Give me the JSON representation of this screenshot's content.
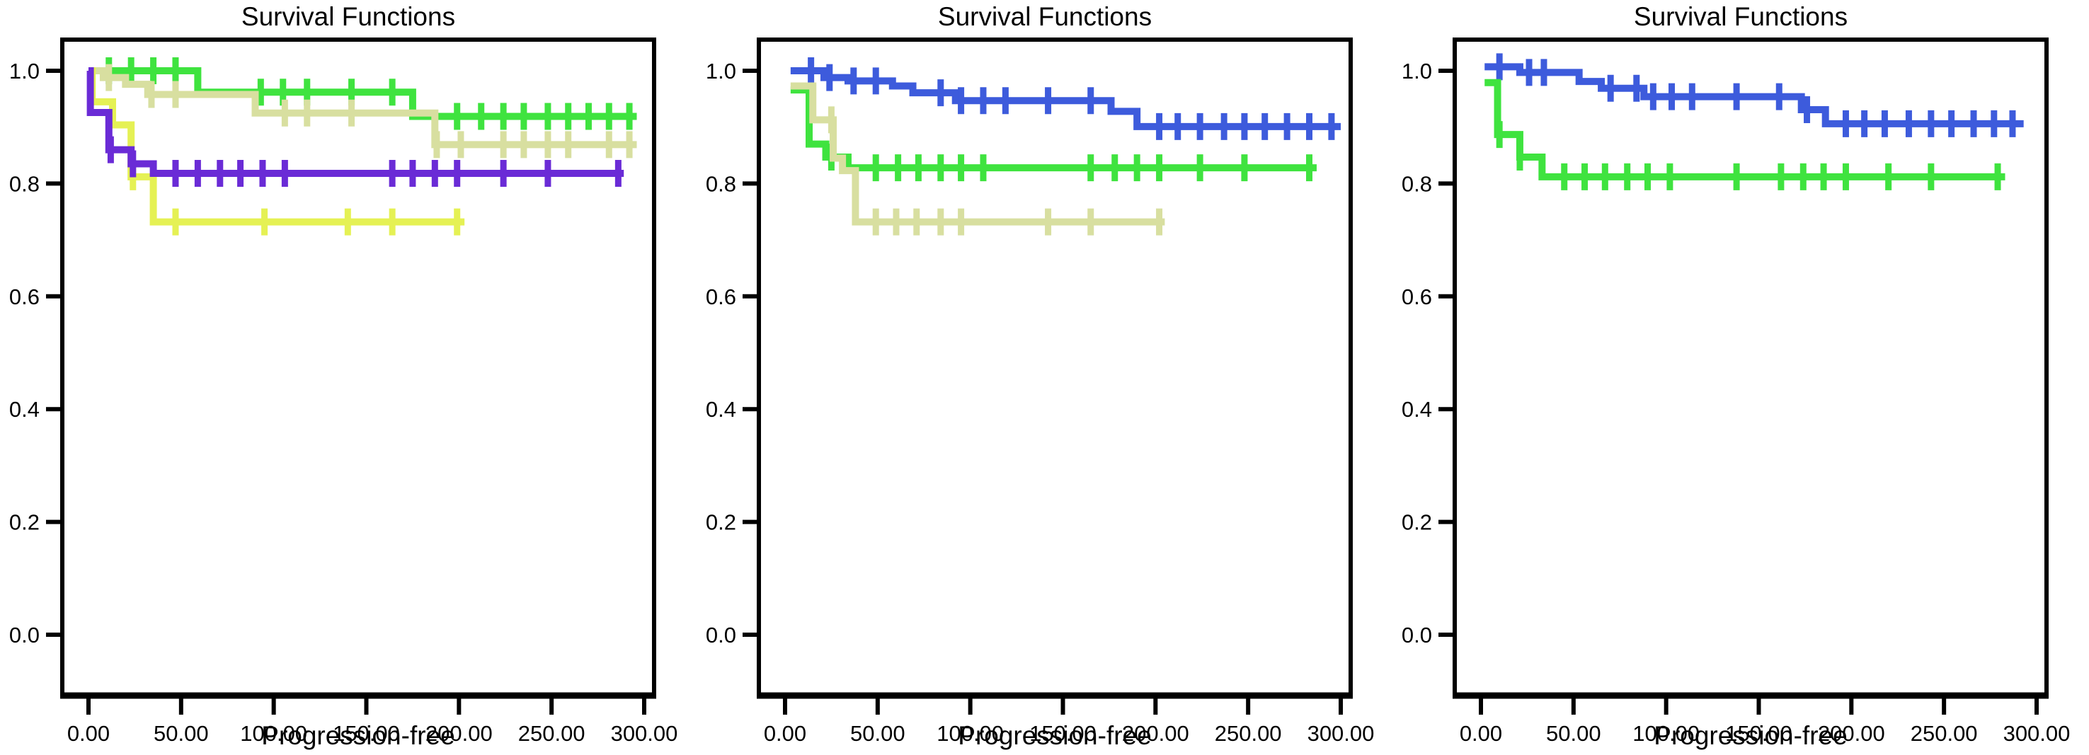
{
  "figure": {
    "background": "#ffffff",
    "panel_count": 3
  },
  "chart_data": [
    {
      "panel": "left",
      "type": "line",
      "subtype": "kaplan_meier_step",
      "title": "Survival Functions",
      "xlabel": "Progression-free",
      "xlim": [
        0,
        300
      ],
      "ylim": [
        0.0,
        1.05
      ],
      "grid": false,
      "legend": "none",
      "x_tick_values": [
        0,
        50,
        100,
        150,
        200,
        250,
        300
      ],
      "x_tick_labels": [
        "0.00",
        "50.00",
        "100.00",
        "150.00",
        "200.00",
        "250.00",
        "300.00"
      ],
      "y_tick_values": [
        1.0,
        0.8,
        0.6,
        0.4,
        0.2,
        0.0
      ],
      "y_tick_labels": [
        "1.0",
        "0.8",
        "0.6",
        "0.4",
        "0.2",
        "0.0"
      ],
      "series": [
        {
          "name": "green-curve",
          "color": "#3FE33F",
          "steps": [
            [
              0,
              1.0
            ],
            [
              59,
              0.962
            ],
            [
              175,
              0.919
            ]
          ],
          "end": 296,
          "censors": [
            11,
            23,
            35,
            47,
            93,
            105,
            118,
            142,
            164,
            199,
            212,
            224,
            235,
            248,
            259,
            270,
            281,
            292
          ]
        },
        {
          "name": "khaki-curve",
          "color": "#D8DFA0",
          "steps": [
            [
              0,
              1.0
            ],
            [
              8,
              0.988
            ],
            [
              20,
              0.976
            ],
            [
              32,
              0.958
            ],
            [
              90,
              0.925
            ],
            [
              187,
              0.869
            ]
          ],
          "end": 296,
          "censors": [
            11,
            34,
            47,
            106,
            118,
            142,
            188,
            201,
            224,
            235,
            248,
            259,
            281,
            292
          ]
        },
        {
          "name": "yellow-curve",
          "color": "#E5F154",
          "steps": [
            [
              0,
              1.0
            ],
            [
              2,
              0.945
            ],
            [
              13,
              0.904
            ],
            [
              23,
              0.812
            ],
            [
              35,
              0.732
            ]
          ],
          "end": 203,
          "censors": [
            24,
            47,
            95,
            140,
            164,
            199
          ]
        },
        {
          "name": "purple-curve",
          "color": "#6A2BD6",
          "steps": [
            [
              0,
              1.0
            ],
            [
              1,
              0.926
            ],
            [
              11,
              0.86
            ],
            [
              23,
              0.835
            ],
            [
              35,
              0.818
            ]
          ],
          "end": 289,
          "censors": [
            12,
            24,
            47,
            59,
            71,
            82,
            94,
            106,
            164,
            175,
            187,
            199,
            224,
            248,
            286
          ]
        }
      ]
    },
    {
      "panel": "middle",
      "type": "line",
      "subtype": "kaplan_meier_step",
      "title": "Survival Functions",
      "xlabel": "Progression-free",
      "xlim": [
        0,
        300
      ],
      "ylim": [
        0.0,
        1.05
      ],
      "grid": false,
      "legend": "none",
      "x_tick_values": [
        0,
        50,
        100,
        150,
        200,
        250,
        300
      ],
      "x_tick_labels": [
        "0.00",
        "50.00",
        "100.00",
        "150.00",
        "200.00",
        "250.00",
        "300.00"
      ],
      "y_tick_values": [
        1.0,
        0.8,
        0.6,
        0.4,
        0.2,
        0.0
      ],
      "y_tick_labels": [
        "1.0",
        "0.8",
        "0.6",
        "0.4",
        "0.2",
        "0.0"
      ],
      "series": [
        {
          "name": "blue-curve",
          "color": "#3D5BDC",
          "steps": [
            [
              3,
              1.0
            ],
            [
              21,
              0.988
            ],
            [
              34,
              0.982
            ],
            [
              58,
              0.973
            ],
            [
              69,
              0.961
            ],
            [
              92,
              0.947
            ],
            [
              176,
              0.928
            ],
            [
              190,
              0.901
            ]
          ],
          "end": 300,
          "censors": [
            14,
            24,
            37,
            49,
            84,
            95,
            107,
            119,
            142,
            165,
            202,
            212,
            224,
            237,
            248,
            259,
            271,
            283,
            295
          ]
        },
        {
          "name": "green-curve",
          "color": "#3FE33F",
          "steps": [
            [
              3,
              0.966
            ],
            [
              13,
              0.87
            ],
            [
              22,
              0.847
            ],
            [
              34,
              0.828
            ]
          ],
          "end": 287,
          "censors": [
            25,
            49,
            61,
            72,
            84,
            95,
            107,
            165,
            178,
            190,
            202,
            224,
            248,
            283
          ]
        },
        {
          "name": "khaki-curve",
          "color": "#D8DFA0",
          "steps": [
            [
              3,
              0.973
            ],
            [
              15,
              0.913
            ],
            [
              26,
              0.845
            ],
            [
              31,
              0.823
            ],
            [
              38,
              0.732
            ]
          ],
          "end": 205,
          "censors": [
            25,
            49,
            60,
            71,
            84,
            95,
            142,
            165,
            202
          ]
        }
      ]
    },
    {
      "panel": "right",
      "type": "line",
      "subtype": "kaplan_meier_step",
      "title": "Survival Functions",
      "xlabel": "Progression-free",
      "xlim": [
        0,
        300
      ],
      "ylim": [
        0.0,
        1.05
      ],
      "grid": false,
      "legend": "none",
      "x_tick_values": [
        0,
        50,
        100,
        150,
        200,
        250,
        300
      ],
      "x_tick_labels": [
        "0.00",
        "50.00",
        "100.00",
        "150.00",
        "200.00",
        "250.00",
        "300.00"
      ],
      "y_tick_values": [
        1.0,
        0.8,
        0.6,
        0.4,
        0.2,
        0.0
      ],
      "y_tick_labels": [
        "1.0",
        "0.8",
        "0.6",
        "0.4",
        "0.2",
        "0.0"
      ],
      "series": [
        {
          "name": "blue-curve",
          "color": "#3D5BDC",
          "steps": [
            [
              2,
              1.007
            ],
            [
              21,
              0.997
            ],
            [
              53,
              0.981
            ],
            [
              65,
              0.969
            ],
            [
              88,
              0.954
            ],
            [
              173,
              0.931
            ],
            [
              186,
              0.906
            ]
          ],
          "end": 293,
          "censors": [
            10,
            26,
            34,
            70,
            84,
            93,
            103,
            114,
            138,
            161,
            176,
            197,
            207,
            218,
            231,
            243,
            254,
            266,
            277,
            287
          ]
        },
        {
          "name": "green-curve",
          "color": "#3FE33F",
          "steps": [
            [
              2,
              0.979
            ],
            [
              9,
              0.887
            ],
            [
              21,
              0.847
            ],
            [
              33,
              0.812
            ]
          ],
          "end": 283,
          "censors": [
            10,
            21,
            45,
            56,
            67,
            79,
            90,
            102,
            138,
            162,
            174,
            185,
            197,
            220,
            243,
            279
          ]
        }
      ]
    }
  ]
}
